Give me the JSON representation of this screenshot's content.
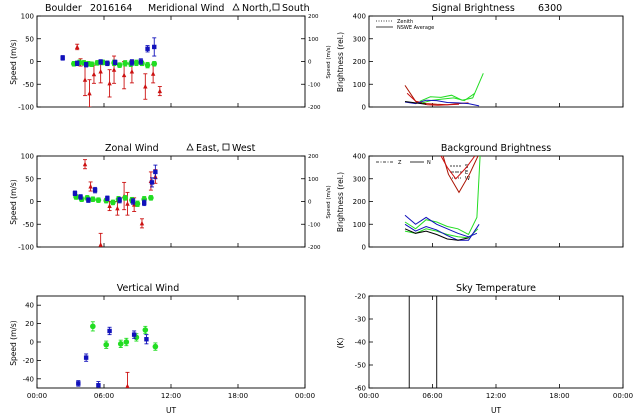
{
  "header": {
    "site": "Boulder",
    "date_code": "2016164"
  },
  "colors": {
    "red": "#cc1111",
    "green": "#22dd22",
    "blue": "#1111bb",
    "black": "#000000",
    "darkred": "#aa1100"
  },
  "chart_data": [
    {
      "id": "meridional",
      "type": "scatter",
      "title": "Meridional Wind",
      "title_note_triangle": "North,",
      "title_note_square": "South",
      "xlim": [
        0,
        24
      ],
      "ylim": [
        -100,
        100
      ],
      "yticks": [
        -100,
        -50,
        0,
        50,
        100
      ],
      "ylabel": "Speed (m/s)",
      "right_axis": {
        "ylim": [
          -200,
          200
        ],
        "ticks": [
          -200,
          -100,
          0,
          100,
          200
        ],
        "label": "Speed (m/s)"
      },
      "series": [
        {
          "color": "red",
          "points": [
            [
              3.6,
              32,
              6
            ],
            [
              3.9,
              -2,
              8
            ],
            [
              4.3,
              -40,
              35
            ],
            [
              4.7,
              -70,
              30
            ],
            [
              5.1,
              -28,
              20
            ],
            [
              5.7,
              -22,
              25
            ],
            [
              6.5,
              -48,
              30
            ],
            [
              6.9,
              -18,
              30
            ],
            [
              7.8,
              -30,
              30
            ],
            [
              8.5,
              -22,
              25
            ],
            [
              9.7,
              -55,
              28
            ],
            [
              10.4,
              -27,
              20
            ],
            [
              11.0,
              -65,
              10
            ]
          ]
        },
        {
          "color": "green",
          "points": [
            [
              3.3,
              -5,
              5
            ],
            [
              3.8,
              -2,
              5
            ],
            [
              4.2,
              -3,
              5
            ],
            [
              4.6,
              -5,
              5
            ],
            [
              4.9,
              -6,
              5
            ],
            [
              5.4,
              -3,
              5
            ],
            [
              5.9,
              -2,
              5
            ],
            [
              6.3,
              -4,
              5
            ],
            [
              6.9,
              -3,
              6
            ],
            [
              7.4,
              -8,
              5
            ],
            [
              7.9,
              -4,
              6
            ],
            [
              8.4,
              -5,
              6
            ],
            [
              8.9,
              -3,
              6
            ],
            [
              9.4,
              -4,
              5
            ],
            [
              9.9,
              -8,
              6
            ],
            [
              10.5,
              -5,
              5
            ]
          ]
        },
        {
          "color": "blue",
          "points": [
            [
              2.3,
              8,
              5
            ],
            [
              3.6,
              -4,
              5
            ],
            [
              4.4,
              -7,
              5
            ],
            [
              5.7,
              -1,
              5
            ],
            [
              6.3,
              -4,
              5
            ],
            [
              7.0,
              -2,
              5
            ],
            [
              8.5,
              -2,
              6
            ],
            [
              9.3,
              0,
              6
            ],
            [
              9.9,
              28,
              7
            ],
            [
              10.5,
              32,
              20
            ]
          ]
        }
      ]
    },
    {
      "id": "zonal",
      "type": "scatter",
      "title": "Zonal Wind",
      "title_note_triangle": "East,",
      "title_note_square": "West",
      "xlim": [
        0,
        24
      ],
      "ylim": [
        -100,
        100
      ],
      "yticks": [
        -100,
        -50,
        0,
        50,
        100
      ],
      "ylabel": "Speed (m/s)",
      "right_axis": {
        "ylim": [
          -200,
          200
        ],
        "ticks": [
          -200,
          -100,
          0,
          100,
          200
        ],
        "label": "Speed (m/s)"
      },
      "series": [
        {
          "color": "red",
          "points": [
            [
              4.3,
              82,
              10
            ],
            [
              4.8,
              33,
              10
            ],
            [
              5.7,
              -95,
              25
            ],
            [
              6.5,
              -10,
              10
            ],
            [
              7.2,
              -15,
              15
            ],
            [
              7.8,
              12,
              30
            ],
            [
              8.1,
              -5,
              25
            ],
            [
              8.7,
              -7,
              15
            ],
            [
              9.4,
              -48,
              10
            ],
            [
              10.2,
              45,
              20
            ],
            [
              10.6,
              55,
              15
            ]
          ]
        },
        {
          "color": "green",
          "points": [
            [
              3.5,
              10,
              5
            ],
            [
              4.0,
              5,
              5
            ],
            [
              4.5,
              8,
              5
            ],
            [
              5.0,
              5,
              5
            ],
            [
              5.5,
              3,
              5
            ],
            [
              6.2,
              2,
              5
            ],
            [
              6.8,
              -2,
              5
            ],
            [
              7.3,
              5,
              6
            ],
            [
              7.9,
              8,
              5
            ],
            [
              8.5,
              3,
              6
            ],
            [
              9.0,
              -5,
              6
            ],
            [
              9.6,
              5,
              6
            ],
            [
              10.2,
              8,
              5
            ]
          ]
        },
        {
          "color": "blue",
          "points": [
            [
              3.4,
              18,
              5
            ],
            [
              3.9,
              10,
              5
            ],
            [
              4.6,
              3,
              5
            ],
            [
              5.2,
              25,
              6
            ],
            [
              6.3,
              7,
              5
            ],
            [
              7.4,
              3,
              6
            ],
            [
              8.6,
              0,
              6
            ],
            [
              9.6,
              -3,
              6
            ],
            [
              10.3,
              42,
              10
            ],
            [
              10.6,
              65,
              15
            ]
          ]
        }
      ]
    },
    {
      "id": "vertical",
      "type": "scatter",
      "title": "Vertical Wind",
      "xlim": [
        0,
        24
      ],
      "ylim": [
        -50,
        50
      ],
      "yticks": [
        -40,
        -20,
        0,
        20,
        40
      ],
      "ylabel": "Speed (m/s)",
      "xticks": [
        "00:00",
        "06:00",
        "12:00",
        "18:00",
        "00:00"
      ],
      "xlabel": "UT",
      "series": [
        {
          "color": "red",
          "points": [
            [
              8.1,
              -48,
              15
            ]
          ]
        },
        {
          "color": "green",
          "points": [
            [
              5.0,
              17,
              5
            ],
            [
              6.2,
              -3,
              4
            ],
            [
              7.5,
              -2,
              4
            ],
            [
              8.0,
              0,
              4
            ],
            [
              8.9,
              5,
              4
            ],
            [
              9.7,
              13,
              4
            ],
            [
              10.6,
              -5,
              4
            ]
          ]
        },
        {
          "color": "blue",
          "points": [
            [
              3.7,
              -45,
              3
            ],
            [
              4.4,
              -17,
              4
            ],
            [
              5.5,
              -47,
              4
            ],
            [
              6.5,
              12,
              4
            ],
            [
              8.7,
              8,
              4
            ],
            [
              9.8,
              3,
              5
            ]
          ]
        }
      ]
    },
    {
      "id": "signal",
      "type": "line",
      "title": "Signal Brightness",
      "wavelength": "6300",
      "xlim": [
        0,
        24
      ],
      "ylim": [
        0,
        400
      ],
      "yticks": [
        0,
        100,
        200,
        300,
        400
      ],
      "ylabel": "Brightness (rel.)",
      "legend": [
        {
          "label": "Zenith",
          "style": "dotted"
        },
        {
          "label": "NSWE Average",
          "style": "solid"
        }
      ],
      "series": [
        {
          "color": "darkred",
          "points": [
            [
              3.4,
              95
            ],
            [
              4.4,
              25
            ],
            [
              5.4,
              15
            ],
            [
              6.4,
              12
            ],
            [
              7.4,
              10
            ],
            [
              8.4,
              15
            ],
            [
              9.4,
              18
            ]
          ]
        },
        {
          "color": "red",
          "points": [
            [
              3.6,
              60
            ],
            [
              4.5,
              22
            ],
            [
              5.5,
              10
            ],
            [
              6.5,
              8
            ],
            [
              7.5,
              10
            ],
            [
              8.5,
              12
            ]
          ]
        },
        {
          "color": "green",
          "points": [
            [
              4.8,
              25
            ],
            [
              5.8,
              45
            ],
            [
              6.8,
              42
            ],
            [
              7.8,
              52
            ],
            [
              8.8,
              30
            ],
            [
              9.8,
              40
            ],
            [
              10.8,
              148
            ]
          ]
        },
        {
          "color": "green",
          "points": [
            [
              5.0,
              18
            ],
            [
              6.0,
              30
            ],
            [
              7.0,
              35
            ],
            [
              8.0,
              40
            ],
            [
              9.0,
              28
            ],
            [
              10.0,
              60
            ]
          ]
        },
        {
          "color": "blue",
          "points": [
            [
              3.4,
              22
            ],
            [
              4.4,
              15
            ],
            [
              5.4,
              30
            ],
            [
              6.4,
              28
            ],
            [
              7.4,
              20
            ],
            [
              8.4,
              18
            ],
            [
              9.4,
              15
            ],
            [
              10.4,
              5
            ]
          ]
        },
        {
          "color": "black",
          "points": [
            [
              3.4,
              24
            ],
            [
              4.4,
              18
            ],
            [
              5.4,
              12
            ]
          ]
        }
      ]
    },
    {
      "id": "background",
      "type": "line",
      "title": "Background Brightness",
      "xlim": [
        0,
        24
      ],
      "ylim": [
        0,
        400
      ],
      "yticks": [
        0,
        100,
        200,
        300,
        400
      ],
      "ylabel": "Brightness (rel.)",
      "legend_letters": [
        "Z",
        "N",
        "S",
        "E",
        "W"
      ],
      "series": [
        {
          "color": "darkred",
          "points": [
            [
              7.0,
              400
            ],
            [
              7.5,
              320
            ],
            [
              8.5,
              240
            ],
            [
              9.5,
              320
            ],
            [
              10.3,
              400
            ]
          ]
        },
        {
          "color": "red",
          "points": [
            [
              6.8,
              400
            ],
            [
              7.4,
              350
            ],
            [
              8.2,
              300
            ],
            [
              9.2,
              350
            ],
            [
              10.0,
              400
            ]
          ]
        },
        {
          "color": "green",
          "points": [
            [
              3.4,
              110
            ],
            [
              4.4,
              80
            ],
            [
              5.4,
              120
            ],
            [
              6.4,
              110
            ],
            [
              7.4,
              90
            ],
            [
              8.4,
              80
            ],
            [
              9.4,
              55
            ],
            [
              10.2,
              130
            ],
            [
              10.5,
              400
            ]
          ]
        },
        {
          "color": "green",
          "points": [
            [
              3.4,
              70
            ],
            [
              4.4,
              60
            ],
            [
              5.4,
              80
            ],
            [
              6.4,
              70
            ],
            [
              7.4,
              55
            ],
            [
              8.4,
              45
            ],
            [
              9.4,
              40
            ],
            [
              10.3,
              80
            ]
          ]
        },
        {
          "color": "blue",
          "points": [
            [
              3.4,
              140
            ],
            [
              4.4,
              100
            ],
            [
              5.4,
              130
            ],
            [
              6.4,
              100
            ],
            [
              7.4,
              80
            ],
            [
              8.4,
              60
            ],
            [
              9.4,
              45
            ],
            [
              10.2,
              60
            ]
          ]
        },
        {
          "color": "blue",
          "points": [
            [
              3.4,
              100
            ],
            [
              4.4,
              70
            ],
            [
              5.4,
              90
            ],
            [
              6.4,
              75
            ],
            [
              7.4,
              50
            ],
            [
              8.4,
              30
            ],
            [
              9.4,
              30
            ],
            [
              10.4,
              100
            ]
          ]
        },
        {
          "color": "black",
          "points": [
            [
              3.4,
              80
            ],
            [
              4.4,
              60
            ],
            [
              5.4,
              70
            ],
            [
              6.4,
              55
            ],
            [
              7.4,
              35
            ],
            [
              8.4,
              30
            ],
            [
              9.4,
              40
            ]
          ]
        }
      ]
    },
    {
      "id": "skytemp",
      "type": "line",
      "title": "Sky Temperature",
      "xlim": [
        0,
        24
      ],
      "ylim": [
        -60,
        -20
      ],
      "yticks": [
        -60,
        -50,
        -40,
        -30,
        -20
      ],
      "ylabel": "(K)",
      "xticks": [
        "00:00",
        "06:00",
        "12:00",
        "18:00",
        "00:00"
      ],
      "xlabel": "UT",
      "vlines": [
        3.8,
        6.4
      ]
    }
  ]
}
